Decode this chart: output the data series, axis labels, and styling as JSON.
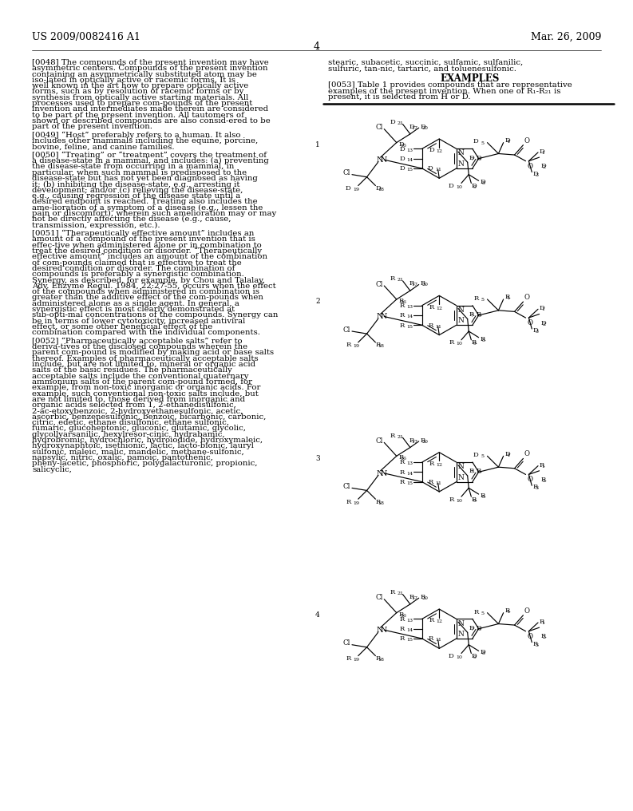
{
  "title_left": "US 2009/0082416 A1",
  "title_right": "Mar. 26, 2009",
  "page_number": "4",
  "background_color": "#ffffff",
  "compounds": [
    {
      "num": "1",
      "left": "D",
      "right_ester": "D",
      "right_chain": "D",
      "bottom": "D"
    },
    {
      "num": "2",
      "left": "R",
      "right_ester": "D",
      "right_chain": "R",
      "bottom": "R"
    },
    {
      "num": "3",
      "left": "R",
      "right_ester": "R",
      "right_chain": "D",
      "bottom": "R"
    },
    {
      "num": "4",
      "left": "R",
      "right_ester": "R",
      "right_chain": "R",
      "bottom": "D"
    }
  ],
  "left_col": [
    "[0048]  The compounds of the present invention may have asymmetric centers. Compounds of the present invention containing an asymmetrically substituted atom may be iso-lated in optically active or racemic forms. It is well known in the art how to prepare optically active forms, such as by resolution of racemic forms or by synthesis from optically active starting materials. All processes used to prepare com-pounds of the present invention and intermediates made therein are considered to be part of the present invention. All tautomers of shown or described compounds are also consid-ered to be part of the present invention.",
    "[0049]  “Host” preferably refers to a human. It also includes other mammals including the equine, porcine, bovine, feline, and canine families.",
    "[0050]  “Treating” or “treatment” covers the treatment of a disease-state in a mammal, and includes: (a) preventing the disease-state from occurring in a mammal, in particular, when such mammal is predisposed to the disease-state but has not yet been diagnosed as having it; (b) inhibiting the disease-state, e.g., arresting it development; and/or (c) relieving the disease-state, e.g., causing regression of the disease state until a desired endpoint is reached. Treating also includes the ame-lioration of a symptom of a disease (e.g., lessen the pain or discomfort), wherein such amelioration may or may not be directly affecting the disease (e.g., cause, transmission, expression, etc.).",
    "[0051]  “Therapeutically effective amount” includes an amount of a compound of the present invention that is effec-tive when administered alone or in combination to treat the desired condition or disorder. “Therapeutically effective amount” includes an amount of the combination of com-pounds claimed that is effective to treat the desired condition or disorder. The combination of compounds is preferably a synergistic combination. Synergy, as described, for example, by Chou and Talalay, Adv. Enzyme Regul. 1984, 22:27-55, occurs when the effect of the compounds when administered in combination is greater than the additive effect of the com-pounds when administered alone as a single agent. In general, a synergistic effect is most clearly demonstrated at sub-opti-mal concentrations of the compounds. Synergy can be in terms of lower cytotoxicity, increased antiviral effect, or some other beneficial effect of the combination compared with the individual components.",
    "[0052]  “Pharmaceutically acceptable salts” refer to deriva-tives of the disclosed compounds wherein the parent com-pound is modified by making acid or base salts thereof. Examples of pharmaceutically acceptable salts include, but are not limited to, mineral or organic acid salts of the basic residues. The pharmaceutically acceptable salts include the conventional quaternary ammonium salts of the parent com-pound formed, for example, from non-toxic inorganic or organic acids. For example, such conventional non-toxic salts include, but are not limited to, those derived from inorganic and organic acids selected from 1, 2-ethanedisulfonic, 2-ac-etoxybenzoic, 2-hydroxyethanesulfonic, acetic, ascorbic, benzenesulfonic, benzoic, bicarbonic, carbonic, citric, edetic, ethane disulfonic, ethane sulfonic, fumaric, glucoheptonic, gluconic, glutamic, glycolic, glycollyarsanilic, hexylresor-cinic, hydrabamic, hydrobromic, hydrochloric, hydroiodide, hydroxymaleic, hydroxynaphtoic, isethionic, lactic, lacto-bionic, lauryl sulfonic, maleic, malic, mandelic, methane-sulfonic, napsylic, nitric, oxalic, pamoic, pantothenic, pheny-lacetic, phosphoric, polygalacturonic, propionic, salicyclic,"
  ],
  "right_top": "stearic, subacetic, succinic, sulfamic, sulfanilic, sulfuric, tan-nic, tartaric, and toluenesulfonic.",
  "examples_header": "EXAMPLES",
  "examples_para": "[0053]  Table 1 provides compounds that are representative examples of the present invention. When one of R₁-R₂₁ is present, it is selected from H or D."
}
